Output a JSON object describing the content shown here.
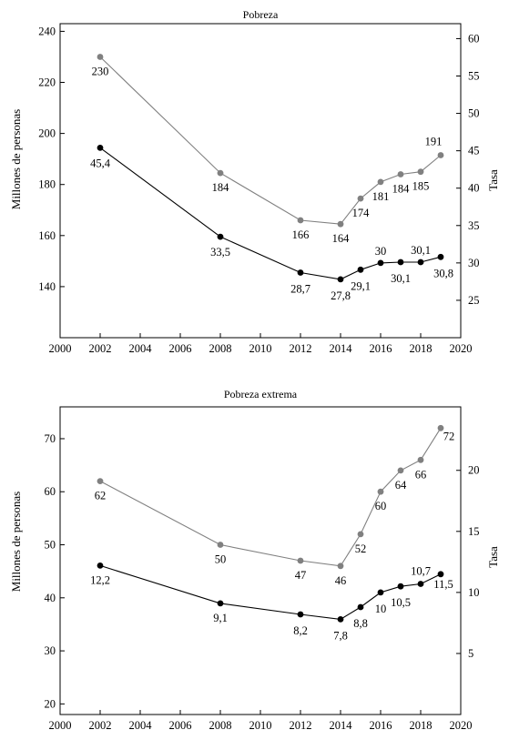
{
  "chart_data": [
    {
      "type": "line",
      "title": "Pobreza",
      "xlabel": "",
      "ylabel": "Millones de personas",
      "y2label": "Tasa",
      "xlim": [
        2000,
        2020
      ],
      "ylim": [
        120,
        243
      ],
      "y2lim": [
        20,
        62
      ],
      "x_ticks": [
        2000,
        2002,
        2004,
        2006,
        2008,
        2010,
        2012,
        2014,
        2016,
        2018,
        2020
      ],
      "y_ticks": [
        140,
        160,
        180,
        200,
        220,
        240
      ],
      "y2_ticks": [
        25,
        30,
        35,
        40,
        45,
        50,
        55,
        60
      ],
      "grid": false,
      "series": [
        {
          "axis": "left",
          "color": "#808080",
          "x": [
            2002,
            2008,
            2012,
            2014,
            2015,
            2016,
            2017,
            2018,
            2019
          ],
          "y": [
            230,
            184.5,
            166,
            164.5,
            174.5,
            181,
            184,
            185,
            191.5
          ],
          "labels": [
            "230",
            "184",
            "166",
            "164",
            "174",
            "181",
            "184",
            "185",
            "191"
          ]
        },
        {
          "axis": "right",
          "color": "#000000",
          "x": [
            2002,
            2008,
            2012,
            2014,
            2015,
            2016,
            2017,
            2018,
            2019
          ],
          "y": [
            45.4,
            33.5,
            28.7,
            27.8,
            29.1,
            30,
            30.1,
            30.1,
            30.8
          ],
          "labels": [
            "45,4",
            "33,5",
            "28,7",
            "27,8",
            "29,1",
            "30",
            "30,1",
            "30,1",
            "30,8"
          ]
        }
      ]
    },
    {
      "type": "line",
      "title": "Pobreza extrema",
      "xlabel": "",
      "ylabel": "Millones de personas",
      "y2label": "Tasa",
      "xlim": [
        2000,
        2020
      ],
      "ylim": [
        18,
        76
      ],
      "y2lim": [
        0,
        25.2
      ],
      "x_ticks": [
        2000,
        2002,
        2004,
        2006,
        2008,
        2010,
        2012,
        2014,
        2016,
        2018,
        2020
      ],
      "y_ticks": [
        20,
        30,
        40,
        50,
        60,
        70
      ],
      "y2_ticks": [
        5,
        10,
        15,
        20
      ],
      "grid": false,
      "series": [
        {
          "axis": "left",
          "color": "#808080",
          "x": [
            2002,
            2008,
            2012,
            2014,
            2015,
            2016,
            2017,
            2018,
            2019
          ],
          "y": [
            62,
            50,
            47,
            46,
            52,
            60,
            64,
            66,
            72
          ],
          "labels": [
            "62",
            "50",
            "47",
            "46",
            "52",
            "60",
            "64",
            "66",
            "72"
          ]
        },
        {
          "axis": "right",
          "color": "#000000",
          "x": [
            2002,
            2008,
            2012,
            2014,
            2015,
            2016,
            2017,
            2018,
            2019
          ],
          "y": [
            12.2,
            9.1,
            8.2,
            7.8,
            8.8,
            10,
            10.5,
            10.7,
            11.5
          ],
          "labels": [
            "12,2",
            "9,1",
            "8,2",
            "7,8",
            "8,8",
            "10",
            "10,5",
            "10,7",
            "11,5"
          ]
        }
      ]
    }
  ]
}
